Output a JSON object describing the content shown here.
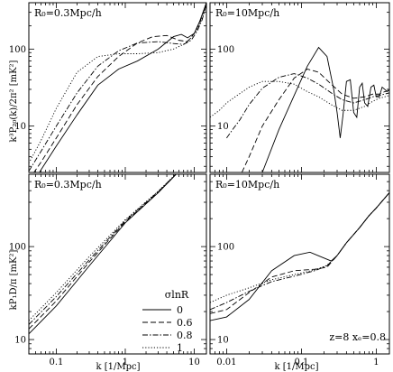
{
  "figure": {
    "xlabel": "k [1/Mpc]",
    "ylabel_top": "k³P₂₀(k)/2π² [mK²]",
    "ylabel_bottom": "kP₁D/π [mK²]"
  },
  "legend": {
    "title": "σlnR",
    "entries": [
      {
        "label": "0",
        "style": "solid"
      },
      {
        "label": "0.6",
        "style": "dashed"
      },
      {
        "label": "0.8",
        "style": "dashdot"
      },
      {
        "label": "1",
        "style": "dotted"
      }
    ]
  },
  "annotation": "z=8  xₑ=0.8",
  "chart_data": [
    {
      "type": "line",
      "panel": "top-left",
      "label": "R₀=0.3Mpc/h",
      "xscale": "log",
      "yscale": "log",
      "xlim": [
        0.04,
        15
      ],
      "ylim": [
        2.5,
        400
      ],
      "x_ticks": [],
      "y_ticks": [
        10,
        100
      ],
      "series": [
        {
          "style": "solid",
          "points": [
            [
              0.04,
              1.5
            ],
            [
              0.06,
              2.7
            ],
            [
              0.1,
              5.5
            ],
            [
              0.2,
              14
            ],
            [
              0.4,
              34
            ],
            [
              0.8,
              55
            ],
            [
              1.5,
              70
            ],
            [
              3,
              100
            ],
            [
              5,
              145
            ],
            [
              6.5,
              155
            ],
            [
              8,
              140
            ],
            [
              10,
              160
            ],
            [
              12,
              230
            ],
            [
              15,
              400
            ]
          ]
        },
        {
          "style": "dashed",
          "points": [
            [
              0.04,
              2
            ],
            [
              0.06,
              3.4
            ],
            [
              0.1,
              7
            ],
            [
              0.2,
              19
            ],
            [
              0.4,
              44
            ],
            [
              0.8,
              80
            ],
            [
              1.5,
              120
            ],
            [
              2.5,
              145
            ],
            [
              4,
              150
            ],
            [
              6,
              130
            ],
            [
              8,
              125
            ],
            [
              10,
              160
            ],
            [
              12,
              220
            ],
            [
              15,
              400
            ]
          ]
        },
        {
          "style": "dashdot",
          "points": [
            [
              0.04,
              2.6
            ],
            [
              0.06,
              4.7
            ],
            [
              0.1,
              10
            ],
            [
              0.2,
              27
            ],
            [
              0.4,
              60
            ],
            [
              0.8,
              95
            ],
            [
              1.5,
              120
            ],
            [
              3,
              125
            ],
            [
              5,
              118
            ],
            [
              7,
              115
            ],
            [
              9,
              130
            ],
            [
              11,
              170
            ],
            [
              13,
              240
            ],
            [
              15,
              380
            ]
          ]
        },
        {
          "style": "dotted",
          "points": [
            [
              0.04,
              3.3
            ],
            [
              0.06,
              6.5
            ],
            [
              0.1,
              17
            ],
            [
              0.2,
              50
            ],
            [
              0.4,
              80
            ],
            [
              0.8,
              87
            ],
            [
              1.5,
              87
            ],
            [
              3,
              90
            ],
            [
              5,
              100
            ],
            [
              7,
              115
            ],
            [
              9,
              140
            ],
            [
              11,
              180
            ],
            [
              13,
              250
            ],
            [
              15,
              380
            ]
          ]
        }
      ]
    },
    {
      "type": "line",
      "panel": "top-right",
      "label": "R₀=10Mpc/h",
      "xscale": "log",
      "yscale": "log",
      "xlim": [
        0.006,
        1.5
      ],
      "ylim": [
        2.5,
        400
      ],
      "x_ticks": [],
      "y_ticks": [
        10,
        100
      ],
      "series": [
        {
          "style": "solid",
          "points": [
            [
              0.03,
              2.5
            ],
            [
              0.05,
              9
            ],
            [
              0.08,
              25
            ],
            [
              0.12,
              60
            ],
            [
              0.17,
              105
            ],
            [
              0.22,
              80
            ],
            [
              0.27,
              30
            ],
            [
              0.3,
              15
            ],
            [
              0.33,
              7
            ],
            [
              0.36,
              14
            ],
            [
              0.4,
              38
            ],
            [
              0.45,
              40
            ],
            [
              0.5,
              15
            ],
            [
              0.55,
              13
            ],
            [
              0.6,
              32
            ],
            [
              0.65,
              36
            ],
            [
              0.7,
              20
            ],
            [
              0.77,
              18
            ],
            [
              0.85,
              32
            ],
            [
              0.93,
              34
            ],
            [
              1.0,
              24
            ],
            [
              1.1,
              24
            ],
            [
              1.2,
              32
            ],
            [
              1.3,
              30
            ],
            [
              1.4,
              28
            ],
            [
              1.5,
              30
            ]
          ]
        },
        {
          "style": "dashed",
          "points": [
            [
              0.016,
              2.5
            ],
            [
              0.02,
              4
            ],
            [
              0.03,
              10
            ],
            [
              0.05,
              22
            ],
            [
              0.08,
              42
            ],
            [
              0.12,
              55
            ],
            [
              0.17,
              50
            ],
            [
              0.25,
              35
            ],
            [
              0.35,
              26
            ],
            [
              0.5,
              23
            ],
            [
              0.7,
              24
            ],
            [
              0.9,
              26
            ],
            [
              1.1,
              26
            ],
            [
              1.3,
              28
            ],
            [
              1.5,
              29
            ]
          ]
        },
        {
          "style": "dashdot",
          "points": [
            [
              0.01,
              7
            ],
            [
              0.012,
              9
            ],
            [
              0.015,
              12
            ],
            [
              0.02,
              19
            ],
            [
              0.03,
              31
            ],
            [
              0.05,
              43
            ],
            [
              0.08,
              48
            ],
            [
              0.12,
              42
            ],
            [
              0.17,
              35
            ],
            [
              0.25,
              27
            ],
            [
              0.35,
              22
            ],
            [
              0.5,
              20
            ],
            [
              0.7,
              22
            ],
            [
              0.9,
              24
            ],
            [
              1.1,
              25
            ],
            [
              1.3,
              26
            ],
            [
              1.5,
              27
            ]
          ]
        },
        {
          "style": "dotted",
          "points": [
            [
              0.006,
              13
            ],
            [
              0.008,
              16
            ],
            [
              0.01,
              20
            ],
            [
              0.013,
              24
            ],
            [
              0.02,
              32
            ],
            [
              0.03,
              38
            ],
            [
              0.05,
              38
            ],
            [
              0.08,
              35
            ],
            [
              0.12,
              28
            ],
            [
              0.17,
              24
            ],
            [
              0.25,
              19
            ],
            [
              0.35,
              16
            ],
            [
              0.5,
              16
            ],
            [
              0.7,
              18
            ],
            [
              0.9,
              21
            ],
            [
              1.1,
              23
            ],
            [
              1.3,
              24
            ],
            [
              1.5,
              25
            ]
          ]
        }
      ]
    },
    {
      "type": "line",
      "panel": "bottom-left",
      "label": "R₀=0.3Mpc/h",
      "xscale": "log",
      "yscale": "log",
      "xlim": [
        0.04,
        15
      ],
      "ylim": [
        7,
        600
      ],
      "x_ticks": [
        0.1,
        1,
        10
      ],
      "y_ticks": [
        10,
        100
      ],
      "series": [
        {
          "style": "solid",
          "points": [
            [
              0.04,
              11.5
            ],
            [
              0.1,
              23
            ],
            [
              0.3,
              62
            ],
            [
              1,
              180
            ],
            [
              3,
              380
            ],
            [
              5,
              560
            ],
            [
              6,
              650
            ]
          ]
        },
        {
          "style": "dashed",
          "points": [
            [
              0.04,
              13
            ],
            [
              0.1,
              26
            ],
            [
              0.3,
              68
            ],
            [
              1,
              185
            ],
            [
              3,
              385
            ],
            [
              5,
              560
            ],
            [
              6,
              650
            ]
          ]
        },
        {
          "style": "dashdot",
          "points": [
            [
              0.04,
              14.5
            ],
            [
              0.1,
              29
            ],
            [
              0.3,
              72
            ],
            [
              1,
              190
            ],
            [
              3,
              390
            ],
            [
              5,
              565
            ],
            [
              6,
              650
            ]
          ]
        },
        {
          "style": "dotted",
          "points": [
            [
              0.04,
              16
            ],
            [
              0.1,
              32
            ],
            [
              0.3,
              78
            ],
            [
              1,
              195
            ],
            [
              3,
              395
            ],
            [
              5,
              570
            ],
            [
              6,
              650
            ]
          ]
        }
      ]
    },
    {
      "type": "line",
      "panel": "bottom-right",
      "label": "R₀=10Mpc/h",
      "xscale": "log",
      "yscale": "log",
      "xlim": [
        0.006,
        1.5
      ],
      "ylim": [
        7,
        600
      ],
      "x_ticks": [
        0.01,
        0.1,
        1
      ],
      "y_ticks": [
        10,
        100
      ],
      "series": [
        {
          "style": "solid",
          "points": [
            [
              0.006,
              16
            ],
            [
              0.01,
              17.5
            ],
            [
              0.02,
              27
            ],
            [
              0.04,
              55
            ],
            [
              0.08,
              80
            ],
            [
              0.13,
              87
            ],
            [
              0.18,
              78
            ],
            [
              0.25,
              70
            ],
            [
              0.3,
              80
            ],
            [
              0.4,
              110
            ],
            [
              0.6,
              160
            ],
            [
              0.8,
              215
            ],
            [
              1,
              260
            ],
            [
              1.5,
              380
            ]
          ]
        },
        {
          "style": "dashed",
          "points": [
            [
              0.006,
              19
            ],
            [
              0.01,
              21
            ],
            [
              0.02,
              32
            ],
            [
              0.04,
              47
            ],
            [
              0.08,
              55
            ],
            [
              0.15,
              57
            ],
            [
              0.22,
              60
            ],
            [
              0.3,
              80
            ],
            [
              0.4,
              110
            ],
            [
              0.6,
              160
            ],
            [
              0.8,
              215
            ],
            [
              1,
              260
            ],
            [
              1.5,
              380
            ]
          ]
        },
        {
          "style": "dashdot",
          "points": [
            [
              0.006,
              21
            ],
            [
              0.01,
              25
            ],
            [
              0.02,
              33
            ],
            [
              0.04,
              42
            ],
            [
              0.08,
              48
            ],
            [
              0.15,
              55
            ],
            [
              0.22,
              62
            ],
            [
              0.3,
              80
            ],
            [
              0.4,
              110
            ],
            [
              0.6,
              160
            ],
            [
              0.8,
              215
            ],
            [
              1,
              260
            ],
            [
              1.5,
              380
            ]
          ]
        },
        {
          "style": "dotted",
          "points": [
            [
              0.006,
              25
            ],
            [
              0.01,
              30
            ],
            [
              0.02,
              36
            ],
            [
              0.04,
              44
            ],
            [
              0.08,
              50
            ],
            [
              0.15,
              56
            ],
            [
              0.22,
              63
            ],
            [
              0.3,
              80
            ],
            [
              0.4,
              110
            ],
            [
              0.6,
              160
            ],
            [
              0.8,
              215
            ],
            [
              1,
              260
            ],
            [
              1.5,
              380
            ]
          ]
        }
      ]
    }
  ]
}
